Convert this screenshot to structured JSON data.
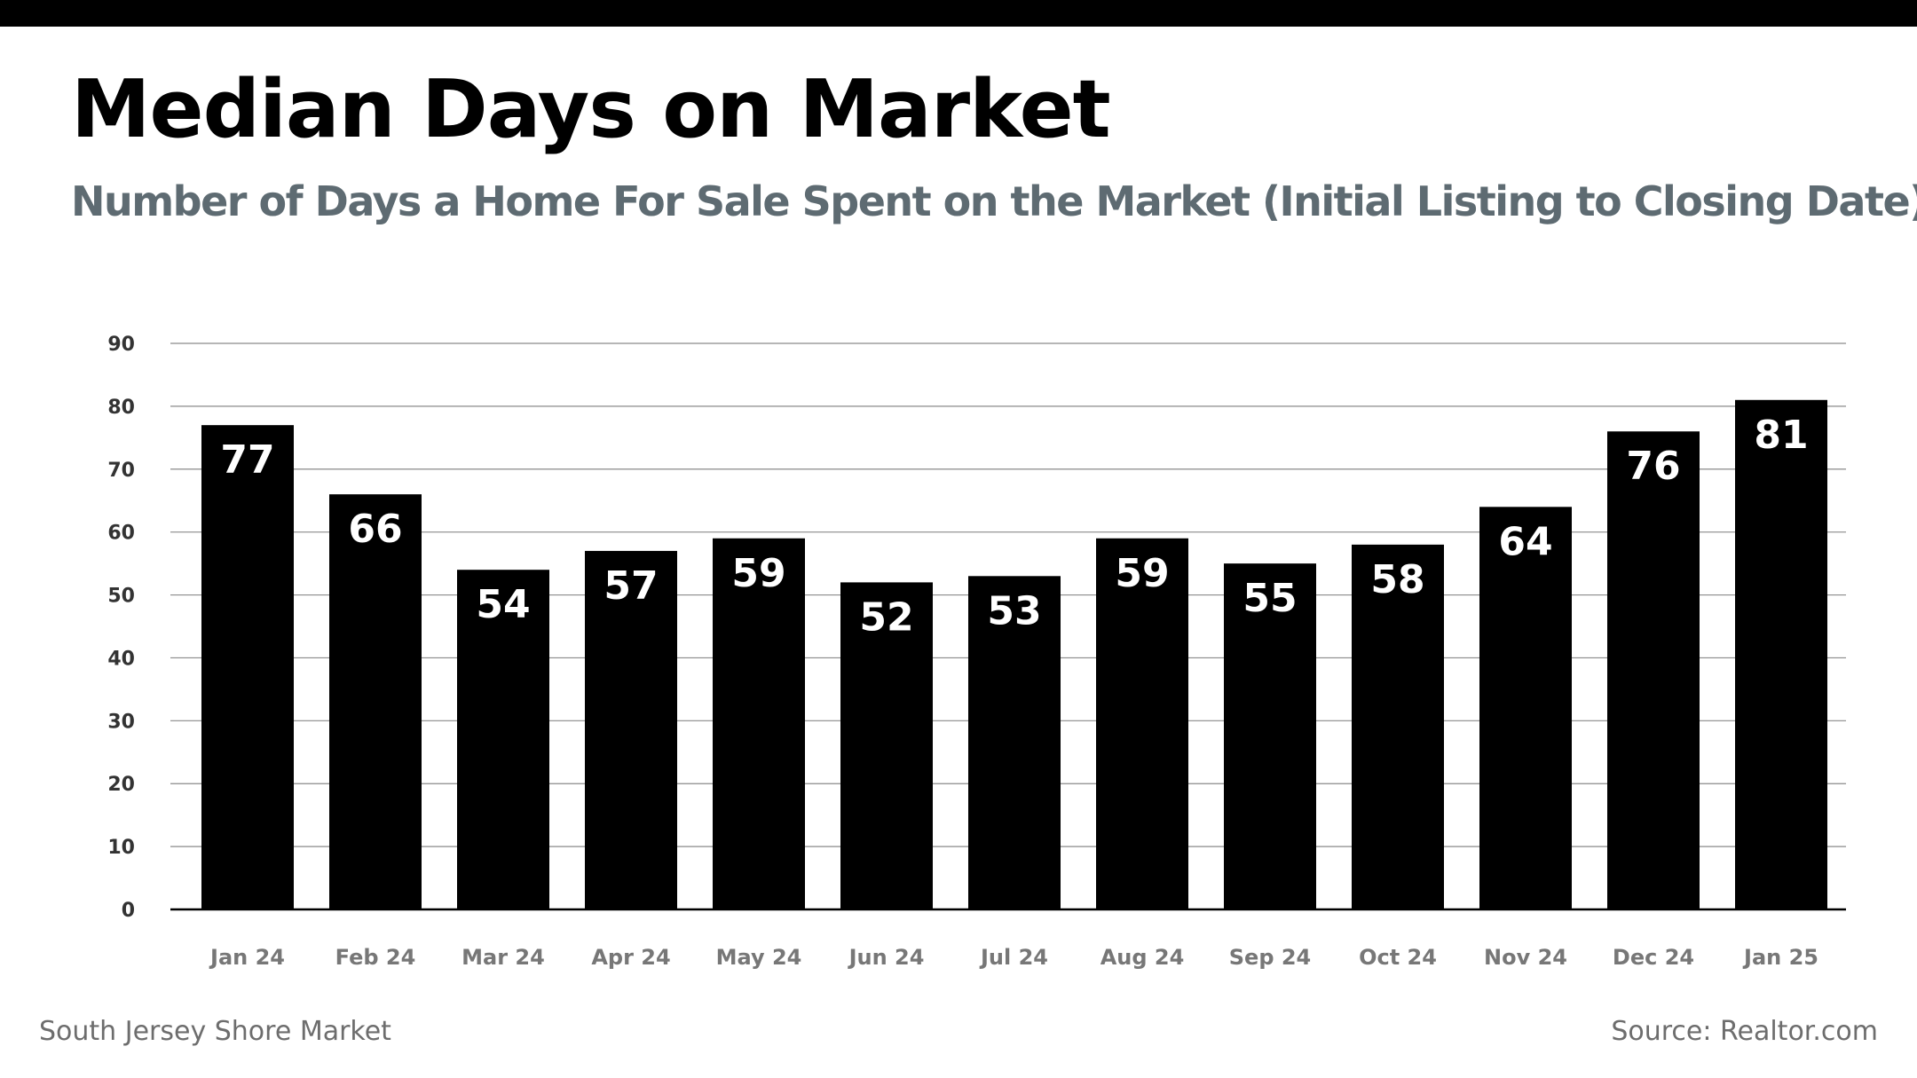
{
  "header": {
    "title": "Median Days on Market",
    "subtitle": "Number of Days a Home For Sale Spent on the Market (Initial Listing to Closing Date)"
  },
  "footer": {
    "left": "South Jersey Shore Market",
    "right": "Source: Realtor.com"
  },
  "colors": {
    "bar": "#000000",
    "bar_label": "#ffffff",
    "gridline": "#8a8a8a",
    "tick_label": "#777777",
    "subtitle": "#5e6b72"
  },
  "chart_data": {
    "type": "bar",
    "title": "Median Days on Market",
    "subtitle": "Number of Days a Home For Sale Spent on the Market (Initial Listing to Closing Date)",
    "categories": [
      "Jan 24",
      "Feb 24",
      "Mar 24",
      "Apr 24",
      "May 24",
      "Jun 24",
      "Jul 24",
      "Aug 24",
      "Sep 24",
      "Oct 24",
      "Nov 24",
      "Dec 24",
      "Jan 25"
    ],
    "values": [
      77,
      66,
      54,
      57,
      59,
      52,
      53,
      59,
      55,
      58,
      64,
      76,
      81
    ],
    "ylim": [
      0,
      90
    ],
    "yticks": [
      0,
      10,
      20,
      30,
      40,
      50,
      60,
      70,
      80,
      90
    ],
    "grid": true,
    "data_labels": true,
    "xlabel": "",
    "ylabel": ""
  }
}
